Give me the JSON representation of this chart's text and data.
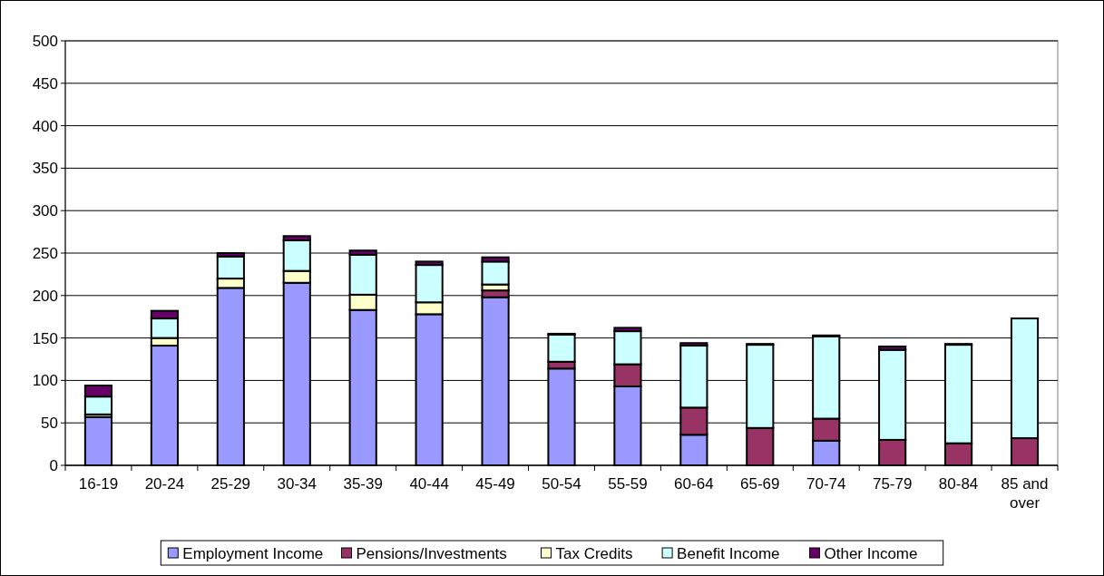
{
  "chart_data": {
    "type": "bar",
    "stacked": true,
    "categories": [
      "16-19",
      "20-24",
      "25-29",
      "30-34",
      "35-39",
      "40-44",
      "45-49",
      "50-54",
      "55-59",
      "60-64",
      "65-69",
      "70-74",
      "75-79",
      "80-84",
      "85 and over"
    ],
    "series": [
      {
        "name": "Employment Income",
        "color": "#9999ff",
        "values": [
          57,
          141,
          209,
          215,
          183,
          178,
          198,
          114,
          93,
          36,
          null,
          29,
          0,
          0,
          0
        ]
      },
      {
        "name": "Pensions/Investments",
        "color": "#993366",
        "values": [
          0,
          0,
          0,
          0,
          0,
          0,
          8,
          8,
          26,
          32,
          44,
          26,
          30,
          26,
          32
        ]
      },
      {
        "name": "Tax Credits",
        "color": "#ffffcc",
        "values": [
          3,
          9,
          11,
          14,
          18,
          14,
          7,
          0,
          0,
          0,
          0,
          0,
          0,
          0,
          0
        ]
      },
      {
        "name": "Benefit Income",
        "color": "#ccffff",
        "values": [
          21,
          23,
          26,
          36,
          47,
          44,
          27,
          32,
          39,
          73,
          98,
          97,
          106,
          116,
          141
        ]
      },
      {
        "name": "Other Income",
        "color": "#660066",
        "values": [
          13,
          9,
          4,
          5,
          5,
          4,
          5,
          1,
          4,
          3,
          1,
          1,
          4,
          1,
          0
        ]
      }
    ],
    "ylim": [
      0,
      500
    ],
    "yticks": [
      0,
      50,
      100,
      150,
      200,
      250,
      300,
      350,
      400,
      450,
      500
    ],
    "grid": "y",
    "legend": "bottom"
  }
}
